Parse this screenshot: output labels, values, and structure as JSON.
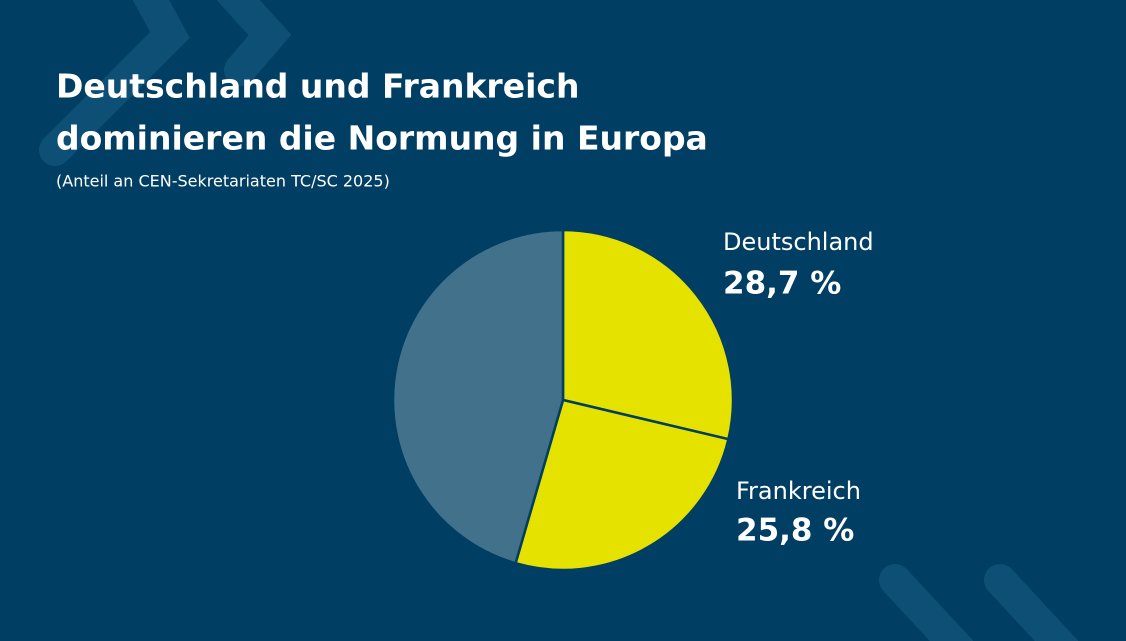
{
  "chart_data": {
    "type": "pie",
    "title": [
      "Deutschland und Frankreich",
      "dominieren die Normung in Europa"
    ],
    "subtitle": "(Anteil an CEN-Sekretariaten TC/SC 2025)",
    "categories": [
      "Deutschland",
      "Frankreich",
      null
    ],
    "values": [
      28.7,
      25.8,
      45.5
    ],
    "value_labels": [
      "28,7 %",
      "25,8 %",
      null
    ],
    "colors": [
      "#e6e200",
      "#e6e200",
      "#41718b"
    ]
  }
}
